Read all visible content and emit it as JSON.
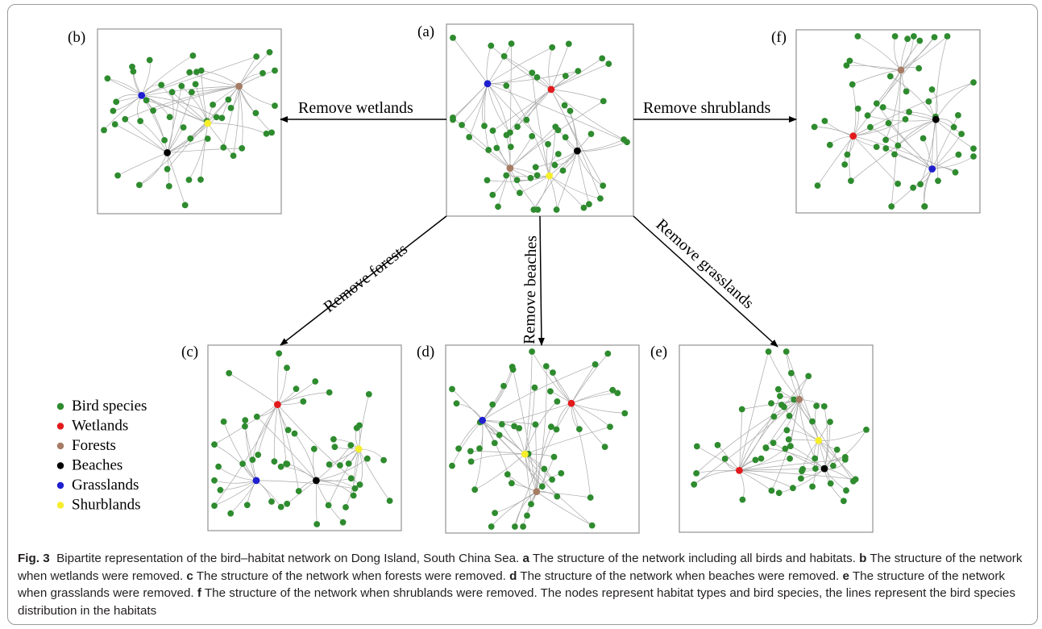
{
  "figure": {
    "panels": [
      {
        "id": "a",
        "label": "(a)",
        "hubs": [
          {
            "habitat": "Wetlands",
            "color": "#e31a1c"
          },
          {
            "habitat": "Grasslands",
            "color": "#1f1fd0"
          },
          {
            "habitat": "Forests",
            "color": "#a67c64"
          },
          {
            "habitat": "Shrublands",
            "color": "#f5ee2a"
          },
          {
            "habitat": "Beaches",
            "color": "#000000"
          }
        ]
      },
      {
        "id": "b",
        "label": "(b)",
        "hubs": [
          {
            "habitat": "Grasslands",
            "color": "#1f1fd0"
          },
          {
            "habitat": "Forests",
            "color": "#a67c64"
          },
          {
            "habitat": "Shrublands",
            "color": "#f5ee2a"
          },
          {
            "habitat": "Beaches",
            "color": "#000000"
          }
        ]
      },
      {
        "id": "f",
        "label": "(f)",
        "hubs": [
          {
            "habitat": "Forests",
            "color": "#a67c64"
          },
          {
            "habitat": "Wetlands",
            "color": "#e31a1c"
          },
          {
            "habitat": "Beaches",
            "color": "#000000"
          },
          {
            "habitat": "Grasslands",
            "color": "#1f1fd0"
          }
        ]
      },
      {
        "id": "c",
        "label": "(c)",
        "hubs": [
          {
            "habitat": "Wetlands",
            "color": "#e31a1c"
          },
          {
            "habitat": "Shrublands",
            "color": "#f5ee2a"
          },
          {
            "habitat": "Grasslands",
            "color": "#1f1fd0"
          },
          {
            "habitat": "Beaches",
            "color": "#000000"
          }
        ]
      },
      {
        "id": "d",
        "label": "(d)",
        "hubs": [
          {
            "habitat": "Grasslands",
            "color": "#1f1fd0"
          },
          {
            "habitat": "Wetlands",
            "color": "#e31a1c"
          },
          {
            "habitat": "Shrublands",
            "color": "#f5ee2a"
          },
          {
            "habitat": "Forests",
            "color": "#a67c64"
          }
        ]
      },
      {
        "id": "e",
        "label": "(e)",
        "hubs": [
          {
            "habitat": "Forests",
            "color": "#a67c64"
          },
          {
            "habitat": "Shrublands",
            "color": "#f5ee2a"
          },
          {
            "habitat": "Wetlands",
            "color": "#e31a1c"
          },
          {
            "habitat": "Beaches",
            "color": "#000000"
          }
        ]
      }
    ],
    "arrows": {
      "wetlands": "Remove wetlands",
      "shrublands": "Remove shrublands",
      "forests": "Remove forests",
      "beaches": "Remove beaches",
      "grasslands": "Remove grasslands"
    },
    "legend": [
      {
        "label": "Bird species",
        "color": "#2e8b2e"
      },
      {
        "label": "Wetlands",
        "color": "#e31a1c"
      },
      {
        "label": "Forests",
        "color": "#a67c64"
      },
      {
        "label": "Beaches",
        "color": "#000000"
      },
      {
        "label": "Grasslands",
        "color": "#1f1fd0"
      },
      {
        "label": "Shurblands",
        "color": "#f5ee2a"
      }
    ],
    "colors": {
      "bird": "#2e8b2e",
      "edge": "#a8a8a8"
    }
  },
  "caption": {
    "fig_label": "Fig. 3",
    "intro": "Bipartite representation of the bird–habitat network on Dong Island, South China Sea.",
    "a_key": "a",
    "a_text": "The structure of the network including all birds and habitats.",
    "b_key": "b",
    "b_text": "The structure of the network when wetlands were removed.",
    "c_key": "c",
    "c_text": "The structure of the network when forests were removed.",
    "d_key": "d",
    "d_text": "The structure of the network when beaches were removed.",
    "e_key": "e",
    "e_text": "The structure of the network when grasslands were removed.",
    "f_key": "f",
    "f_text": "The structure of the network when shrublands were removed. The nodes represent habitat types and bird species, the lines represent the bird species distribution in the habitats"
  }
}
